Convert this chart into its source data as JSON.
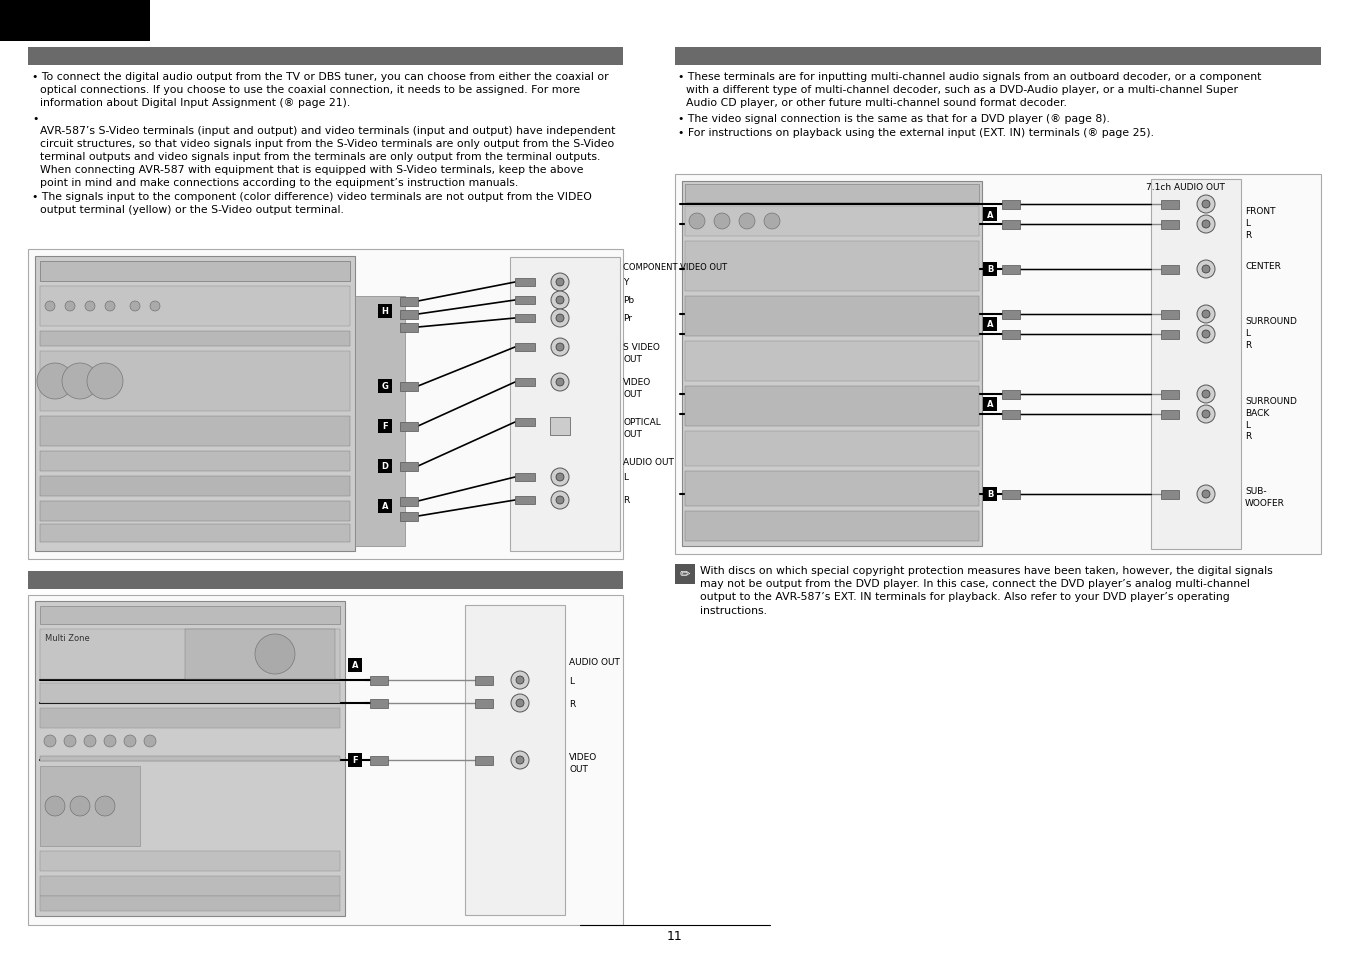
{
  "bg_color": "#ffffff",
  "black_bar_color": "#000000",
  "section_bar_color": "#6a6a6a",
  "text_color": "#000000",
  "page_number": "11",
  "left_bullet1": "To connect the digital audio output from the TV or DBS tuner, you can choose from either the coaxial or\n  optical connections. If you choose to use the coaxial connection, it needs to be assigned. For more\n  information about Digital Input Assignment (ℹ® page 21).",
  "left_bullet2_marker": "•",
  "left_para": "AVR-587’s S-Video terminals (input and output) and video terminals (input and output) have independent\n  circuit structures, so that video signals input from the S-Video terminals are only output from the S-Video\n  terminal outputs and video signals input from the terminals are only output from the terminal outputs.\n  When connecting AVR-587 with equipment that is equipped with S-Video terminals, keep the above\n  point in mind and make connections according to the equipment’s instruction manuals.",
  "left_bullet3": "The signals input to the component (color difference) video terminals are not output from the VIDEO\n  output terminal (yellow) or the S-Video output terminal.",
  "right_bullet1": "These terminals are for inputting multi-channel audio signals from an outboard decoder, or a component\n  with a different type of multi-channel decoder, such as a DVD-Audio player, or a multi-channel Super\n  Audio CD player, or other future multi-channel sound format decoder.",
  "right_bullet2": "The video signal connection is the same as that for a DVD player (ℹ® page 8).",
  "right_bullet3": "For instructions on playback using the external input (EXT. IN) terminals (ℹ® page 25).",
  "note_text": "With discs on which special copyright protection measures have been taken, however, the digital signals\nmay not be output from the DVD player. In this case, connect the DVD player’s analog multi-channel\noutput to the AVR-587’s EXT. IN terminals for playback. Also refer to your DVD player’s operating\ninstructions.",
  "font_size_body": 7.8,
  "font_size_small": 6.5,
  "font_size_label": 6.0,
  "avr_color": "#c8c8c8",
  "avr_edge": "#888888",
  "connector_color": "#909090",
  "rca_color": "#b0b0b0",
  "wire_color": "#000000",
  "label_box_color": "#000000",
  "label_box_text": "#ffffff",
  "section_outline": "#aaaaaa"
}
